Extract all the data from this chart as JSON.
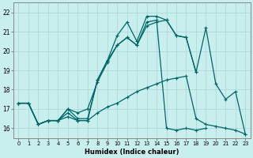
{
  "xlabel": "Humidex (Indice chaleur)",
  "xlim": [
    -0.5,
    23.5
  ],
  "ylim": [
    15.5,
    22.5
  ],
  "yticks": [
    16,
    17,
    18,
    19,
    20,
    21,
    22
  ],
  "xticks": [
    0,
    1,
    2,
    3,
    4,
    5,
    6,
    7,
    8,
    9,
    10,
    11,
    12,
    13,
    14,
    15,
    16,
    17,
    18,
    19,
    20,
    21,
    22,
    23
  ],
  "background_color": "#c8eeee",
  "grid_color": "#b0d8d8",
  "line_color": "#006666",
  "series": [
    {
      "x": [
        0,
        1,
        2,
        3,
        4,
        5,
        6,
        7,
        8,
        9,
        10,
        11,
        12,
        13,
        14,
        15,
        16,
        17,
        18,
        19
      ],
      "y": [
        17.3,
        17.3,
        16.2,
        16.4,
        16.4,
        16.8,
        16.4,
        16.4,
        18.5,
        19.5,
        20.3,
        20.7,
        20.3,
        21.5,
        21.6,
        16.0,
        15.9,
        16.0,
        15.9,
        16.0
      ]
    },
    {
      "x": [
        0,
        1,
        2,
        3,
        4,
        5,
        6,
        7,
        8,
        9,
        10,
        11,
        12,
        13,
        14,
        15,
        16,
        17,
        18
      ],
      "y": [
        17.3,
        17.3,
        16.2,
        16.4,
        16.4,
        17.0,
        16.5,
        16.5,
        18.5,
        19.5,
        20.8,
        21.5,
        20.5,
        21.8,
        21.8,
        21.6,
        20.8,
        20.7,
        18.9
      ]
    },
    {
      "x": [
        0,
        1,
        2,
        3,
        4,
        5,
        6,
        7,
        8,
        9,
        10,
        11,
        12,
        13,
        14,
        15,
        16,
        17,
        18,
        19,
        20,
        21,
        22,
        23
      ],
      "y": [
        17.3,
        17.3,
        16.2,
        16.4,
        16.4,
        17.0,
        16.8,
        17.0,
        18.4,
        19.4,
        20.3,
        20.7,
        20.3,
        21.3,
        21.5,
        21.6,
        20.8,
        20.7,
        18.9,
        21.2,
        18.3,
        17.5,
        17.9,
        15.7
      ]
    },
    {
      "x": [
        0,
        1,
        2,
        3,
        4,
        5,
        6,
        7,
        8,
        9,
        10,
        11,
        12,
        13,
        14,
        15,
        16,
        17,
        18,
        19,
        20,
        21,
        22,
        23
      ],
      "y": [
        17.3,
        17.3,
        16.2,
        16.4,
        16.4,
        16.6,
        16.4,
        16.4,
        16.8,
        17.1,
        17.3,
        17.6,
        17.9,
        18.1,
        18.3,
        18.5,
        18.6,
        18.7,
        16.5,
        16.2,
        16.1,
        16.0,
        15.9,
        15.7
      ]
    }
  ]
}
